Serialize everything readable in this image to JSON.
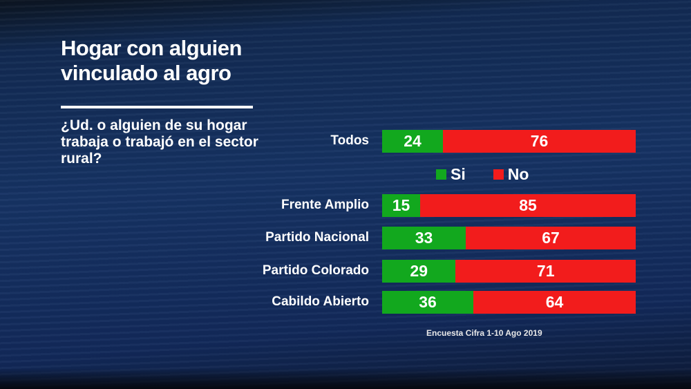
{
  "chart_data": {
    "type": "bar",
    "orientation": "horizontal-stacked",
    "title": "Hogar con alguien vinculado al agro",
    "subtitle": "¿Ud. o alguien de su hogar trabaja o trabajó en el sector rural?",
    "categories": [
      "Todos",
      "Frente Amplio",
      "Partido Nacional",
      "Partido Colorado",
      "Cabildo Abierto"
    ],
    "series": [
      {
        "name": "Si",
        "color": "#12a81e",
        "values": [
          24,
          15,
          33,
          29,
          36
        ]
      },
      {
        "name": "No",
        "color": "#f21c1c",
        "values": [
          76,
          85,
          67,
          71,
          64
        ]
      }
    ],
    "xlim": [
      0,
      100
    ],
    "legend_position": "below-first-bar",
    "source": "Encuesta Cifra  1-10 Ago 2019"
  }
}
